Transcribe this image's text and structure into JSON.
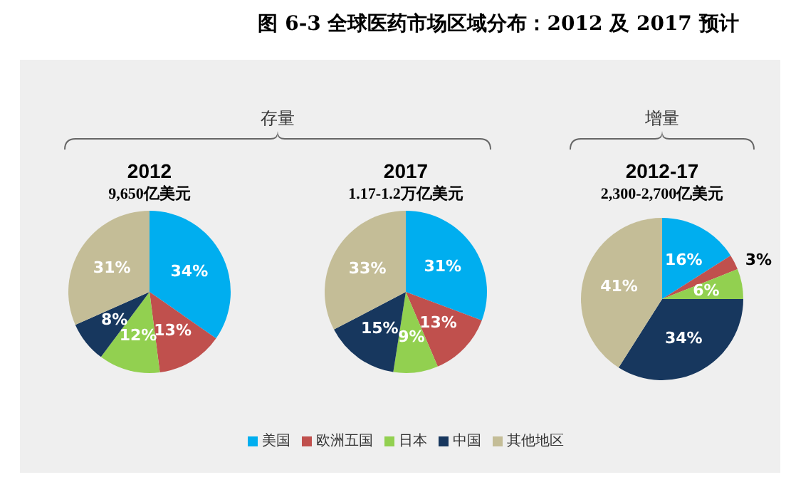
{
  "chart_data": [
    {
      "type": "pie",
      "title": "2012",
      "subtitle": "9,650亿美元",
      "values": [
        34,
        13,
        12,
        8,
        31
      ],
      "value_labels": [
        "34%",
        "13%",
        "12%",
        "8%",
        "31%"
      ],
      "colors": [
        "#00aeef",
        "#c0504d",
        "#92d050",
        "#17375e",
        "#c4bd97"
      ],
      "annotations": [
        "图 6-3  全球医药市场区域分布：2012 及 2017 预计",
        "存量"
      ]
    },
    {
      "type": "pie",
      "title": "2017",
      "subtitle": "1.17-1.2万亿美元",
      "categories": [
        "美国",
        "欧洲五国",
        "日本",
        "中国",
        "其他地区"
      ],
      "values": [
        31,
        13,
        9,
        15,
        33
      ],
      "value_labels": [
        "31%",
        "13%",
        "9%",
        "15%",
        "33%"
      ],
      "colors": [
        "#00aeef",
        "#c0504d",
        "#92d050",
        "#17375e",
        "#c4bd97"
      ],
      "legend": "bottom"
    },
    {
      "type": "pie",
      "title": "2012-17",
      "subtitle": "2,300-2,700亿美元",
      "values": [
        16,
        3,
        6,
        34,
        41
      ],
      "value_labels": [
        "16%",
        "3%",
        "6%",
        "34%",
        "41%"
      ],
      "colors": [
        "#00aeef",
        "#c0504d",
        "#92d050",
        "#17375e",
        "#c4bd97"
      ],
      "annotations": [
        "增量"
      ]
    }
  ]
}
